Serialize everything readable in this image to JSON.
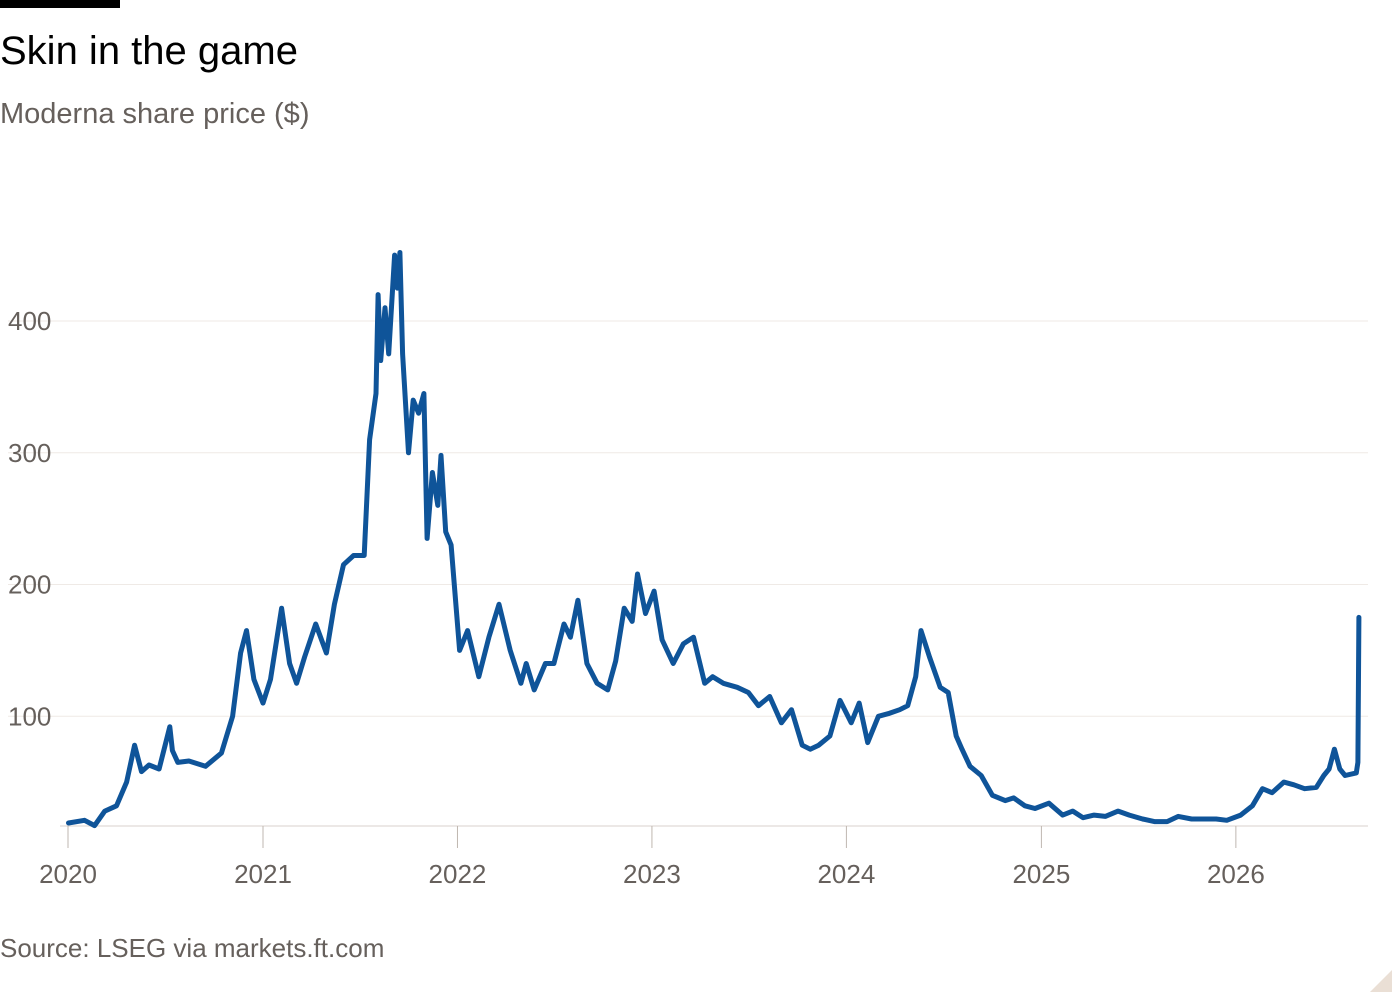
{
  "chart_data": {
    "type": "line",
    "title": "Skin in the game",
    "subtitle": "Moderna share price ($)",
    "source": "Source: LSEG via markets.ft.com",
    "xlabel": "",
    "ylabel": "",
    "x_ticks": [
      "2020",
      "2021",
      "2022",
      "2023",
      "2024",
      "2025",
      "2026"
    ],
    "y_ticks": [
      100,
      200,
      300,
      400
    ],
    "ylim": [
      0,
      500
    ],
    "xlim": [
      "2020-01-01",
      "2026-08-31"
    ],
    "grid": true,
    "line_color": "#0f5499",
    "series": [
      {
        "x": [
          "2020-01-02",
          "2020-02-01",
          "2020-02-20",
          "2020-03-10",
          "2020-04-01",
          "2020-04-20",
          "2020-05-05",
          "2020-05-18",
          "2020-06-01",
          "2020-06-20",
          "2020-07-10",
          "2020-07-15",
          "2020-07-25",
          "2020-08-15",
          "2020-09-15",
          "2020-10-15",
          "2020-11-05",
          "2020-11-20",
          "2020-12-01",
          "2020-12-15",
          "2021-01-01",
          "2021-01-15",
          "2021-02-05",
          "2021-02-20",
          "2021-03-05",
          "2021-03-20",
          "2021-04-10",
          "2021-04-30",
          "2021-05-15",
          "2021-06-01",
          "2021-06-20",
          "2021-07-10",
          "2021-07-20",
          "2021-08-01",
          "2021-08-05",
          "2021-08-10",
          "2021-08-18",
          "2021-08-25",
          "2021-09-05",
          "2021-09-10",
          "2021-09-15",
          "2021-09-20",
          "2021-10-01",
          "2021-10-10",
          "2021-10-20",
          "2021-10-30",
          "2021-11-05",
          "2021-11-15",
          "2021-11-25",
          "2021-12-01",
          "2021-12-10",
          "2021-12-20",
          "2022-01-05",
          "2022-01-20",
          "2022-02-10",
          "2022-03-01",
          "2022-03-20",
          "2022-04-10",
          "2022-04-30",
          "2022-05-10",
          "2022-05-25",
          "2022-06-15",
          "2022-07-01",
          "2022-07-20",
          "2022-08-01",
          "2022-08-15",
          "2022-09-01",
          "2022-09-20",
          "2022-10-10",
          "2022-10-25",
          "2022-11-10",
          "2022-11-25",
          "2022-12-05",
          "2022-12-20",
          "2023-01-05",
          "2023-01-20",
          "2023-02-10",
          "2023-03-01",
          "2023-03-20",
          "2023-04-10",
          "2023-04-25",
          "2023-05-15",
          "2023-06-10",
          "2023-07-01",
          "2023-07-20",
          "2023-08-10",
          "2023-09-01",
          "2023-09-20",
          "2023-10-10",
          "2023-10-25",
          "2023-11-10",
          "2023-12-01",
          "2023-12-20",
          "2024-01-10",
          "2024-01-25",
          "2024-02-10",
          "2024-03-01",
          "2024-03-20",
          "2024-04-10",
          "2024-04-25",
          "2024-05-10",
          "2024-05-20",
          "2024-06-05",
          "2024-06-25",
          "2024-07-10",
          "2024-07-25",
          "2024-08-05",
          "2024-08-20",
          "2024-09-10",
          "2024-10-01",
          "2024-10-25",
          "2024-11-10",
          "2024-12-01",
          "2024-12-20",
          "2025-01-15",
          "2025-02-10",
          "2025-03-01",
          "2025-03-20",
          "2025-04-10",
          "2025-05-01",
          "2025-05-25",
          "2025-06-15",
          "2025-07-10",
          "2025-08-01",
          "2025-08-25",
          "2025-09-15",
          "2025-10-10",
          "2025-11-01",
          "2025-11-25",
          "2025-12-15",
          "2026-01-10",
          "2026-02-01",
          "2026-02-20",
          "2026-03-10",
          "2026-04-01",
          "2026-04-20",
          "2026-05-10",
          "2026-06-01",
          "2026-06-15",
          "2026-06-25",
          "2026-07-05",
          "2026-07-15",
          "2026-07-25",
          "2026-08-15",
          "2026-08-18",
          "2026-08-20"
        ],
        "y": [
          19,
          21,
          17,
          28,
          32,
          50,
          78,
          58,
          63,
          60,
          92,
          74,
          65,
          66,
          62,
          72,
          100,
          148,
          165,
          128,
          110,
          128,
          182,
          140,
          125,
          145,
          170,
          148,
          185,
          215,
          222,
          222,
          310,
          345,
          420,
          370,
          410,
          375,
          450,
          425,
          452,
          375,
          300,
          340,
          330,
          345,
          235,
          285,
          260,
          298,
          240,
          230,
          150,
          165,
          130,
          160,
          185,
          150,
          125,
          140,
          120,
          140,
          140,
          170,
          160,
          188,
          140,
          125,
          120,
          142,
          182,
          172,
          208,
          178,
          195,
          158,
          140,
          155,
          160,
          125,
          130,
          125,
          122,
          118,
          108,
          115,
          95,
          105,
          78,
          75,
          78,
          85,
          112,
          95,
          110,
          80,
          100,
          102,
          105,
          108,
          130,
          165,
          145,
          122,
          118,
          85,
          75,
          62,
          55,
          40,
          36,
          38,
          32,
          30,
          34,
          25,
          28,
          23,
          25,
          24,
          28,
          25,
          22,
          20,
          20,
          24,
          22,
          22,
          22,
          21,
          25,
          32,
          45,
          42,
          50,
          48,
          45,
          46,
          55,
          60,
          75,
          60,
          55,
          57,
          65,
          175
        ]
      }
    ]
  }
}
